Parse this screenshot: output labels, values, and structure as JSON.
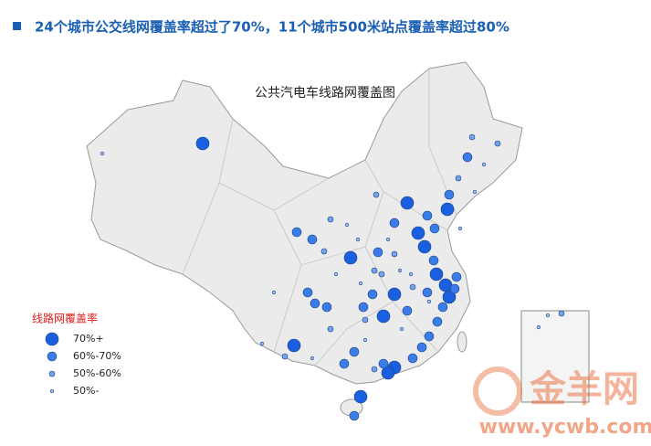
{
  "header": {
    "title": "24个城市公交线网覆盖率超过了70%，11个城市500米站点覆盖率超过80%"
  },
  "map": {
    "title": "公共汽电车线路网覆盖图"
  },
  "legend": {
    "title": "线路网覆盖率",
    "items": [
      "70%+",
      "60%-70%",
      "50%-60%",
      "50%-"
    ]
  },
  "watermark": {
    "logo": "金羊网",
    "url": "www.ycwb.com"
  }
}
